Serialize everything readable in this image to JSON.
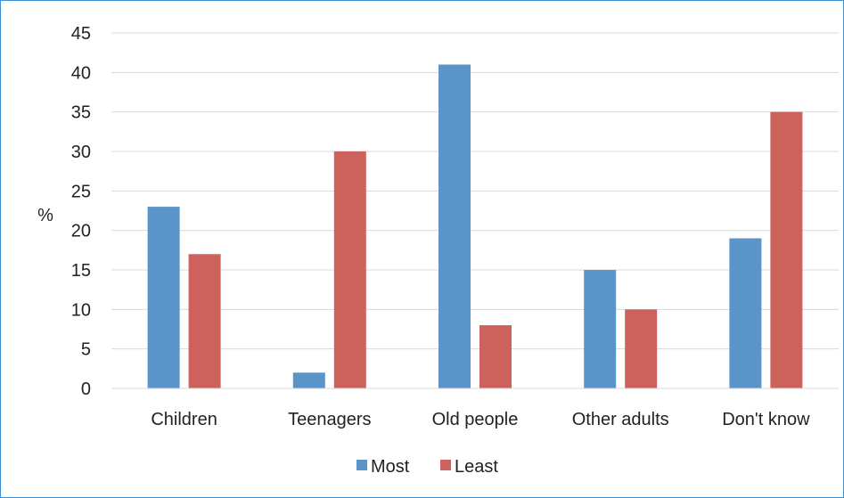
{
  "chart_data": {
    "type": "bar",
    "title": "",
    "xlabel": "",
    "ylabel": "%",
    "ylim": [
      0,
      45
    ],
    "yticks": [
      0,
      5,
      10,
      15,
      20,
      25,
      30,
      35,
      40,
      45
    ],
    "grid": true,
    "legend_position": "bottom",
    "categories": [
      "Children",
      "Teenagers",
      "Old people",
      "Other adults",
      "Don't know"
    ],
    "series": [
      {
        "name": "Most",
        "color": "#5b94c9",
        "values": [
          23,
          2,
          41,
          15,
          19
        ]
      },
      {
        "name": "Least",
        "color": "#cd625d",
        "values": [
          17,
          30,
          8,
          10,
          35
        ]
      }
    ]
  }
}
